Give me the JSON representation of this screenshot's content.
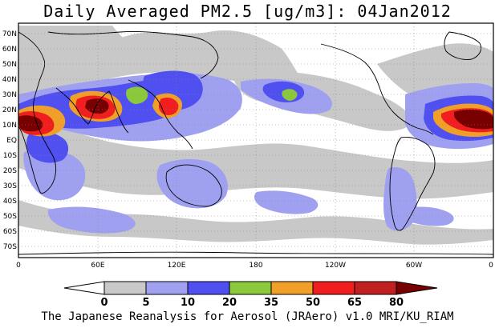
{
  "title": "Daily Averaged PM2.5 [ug/m3]: 04Jan2012",
  "footer": "The Japanese Reanalysis for Aerosol (JRAero) v1.0 MRI/KU_RIAM",
  "map": {
    "lon_range": [
      0,
      360
    ],
    "lat_range": [
      -75,
      75
    ],
    "lat_ticks": [
      "70N",
      "60N",
      "50N",
      "40N",
      "30N",
      "20N",
      "10N",
      "EQ",
      "10S",
      "20S",
      "30S",
      "40S",
      "50S",
      "60S",
      "70S"
    ],
    "lon_ticks": [
      "0",
      "60E",
      "120E",
      "180",
      "120W",
      "60W",
      "0"
    ],
    "grid": "dotted"
  },
  "colorbar": {
    "levels": [
      "0",
      "5",
      "10",
      "20",
      "35",
      "50",
      "65",
      "80"
    ],
    "colors": [
      "#ffffff",
      "#c8c8c8",
      "#a0a0f0",
      "#5050f0",
      "#8cc83c",
      "#f0a028",
      "#f01e1e",
      "#780000"
    ],
    "units": "ug/m3"
  },
  "shading_colors": {
    "ocean": "#ffffff",
    "level_5": "#c8c8c8",
    "level_10": "#a0a0f0",
    "level_20": "#5050f0",
    "level_35": "#8cc83c",
    "level_50": "#f0a028",
    "level_65": "#f01e1e",
    "level_80": "#780000"
  }
}
